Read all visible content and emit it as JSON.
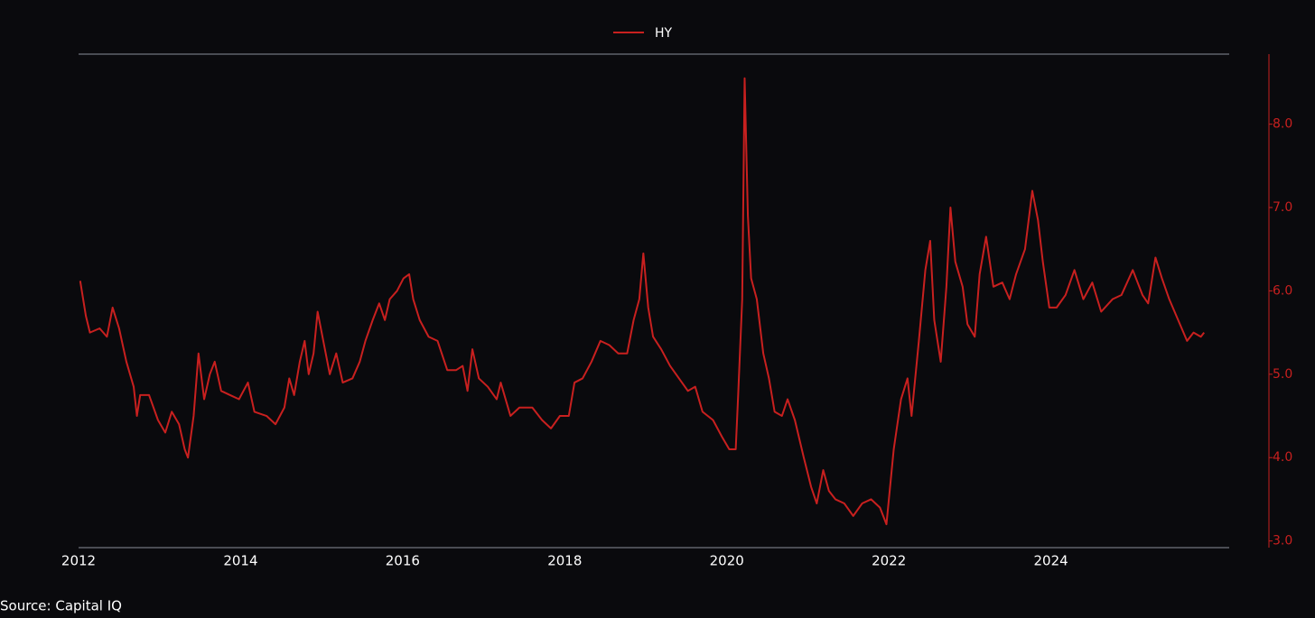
{
  "chart_data": {
    "type": "line",
    "source": "Source: Capital IQ",
    "legend_position": "top",
    "y_axis_side": "right",
    "grid": false,
    "x": [
      2012.02,
      2012.09,
      2012.14,
      2012.26,
      2012.35,
      2012.42,
      2012.5,
      2012.59,
      2012.68,
      2012.72,
      2012.76,
      2012.87,
      2012.98,
      2013.07,
      2013.15,
      2013.24,
      2013.31,
      2013.35,
      2013.42,
      2013.48,
      2013.55,
      2013.62,
      2013.68,
      2013.76,
      2013.87,
      2013.98,
      2014.09,
      2014.17,
      2014.32,
      2014.43,
      2014.54,
      2014.6,
      2014.66,
      2014.73,
      2014.79,
      2014.84,
      2014.9,
      2014.95,
      2015.02,
      2015.1,
      2015.18,
      2015.26,
      2015.38,
      2015.47,
      2015.54,
      2015.63,
      2015.71,
      2015.78,
      2015.84,
      2015.93,
      2016.01,
      2016.08,
      2016.13,
      2016.21,
      2016.32,
      2016.43,
      2016.55,
      2016.66,
      2016.74,
      2016.8,
      2016.86,
      2016.94,
      2017.05,
      2017.16,
      2017.21,
      2017.33,
      2017.44,
      2017.6,
      2017.72,
      2017.83,
      2017.94,
      2018.05,
      2018.12,
      2018.22,
      2018.33,
      2018.44,
      2018.55,
      2018.66,
      2018.77,
      2018.85,
      2018.92,
      2018.97,
      2019.03,
      2019.09,
      2019.19,
      2019.3,
      2019.41,
      2019.52,
      2019.61,
      2019.7,
      2019.83,
      2019.94,
      2020.03,
      2020.11,
      2020.14,
      2020.19,
      2020.22,
      2020.26,
      2020.3,
      2020.37,
      2020.45,
      2020.52,
      2020.59,
      2020.68,
      2020.75,
      2020.84,
      2020.95,
      2021.04,
      2021.11,
      2021.19,
      2021.26,
      2021.34,
      2021.45,
      2021.56,
      2021.67,
      2021.78,
      2021.89,
      2021.97,
      2022.06,
      2022.15,
      2022.23,
      2022.28,
      2022.37,
      2022.45,
      2022.51,
      2022.56,
      2022.64,
      2022.71,
      2022.76,
      2022.82,
      2022.91,
      2022.97,
      2023.06,
      2023.12,
      2023.2,
      2023.29,
      2023.4,
      2023.49,
      2023.57,
      2023.68,
      2023.77,
      2023.84,
      2023.9,
      2023.98,
      2024.07,
      2024.18,
      2024.29,
      2024.4,
      2024.51,
      2024.62,
      2024.76,
      2024.87,
      2025.01,
      2025.13,
      2025.2,
      2025.29,
      2025.37,
      2025.46,
      2025.57,
      2025.68,
      2025.76,
      2025.85,
      2025.89
    ],
    "series": [
      {
        "name": "HY",
        "color": "#c8201f",
        "values": [
          6.12,
          5.7,
          5.5,
          5.55,
          5.45,
          5.8,
          5.55,
          5.15,
          4.85,
          4.5,
          4.75,
          4.75,
          4.45,
          4.3,
          4.55,
          4.4,
          4.1,
          4.0,
          4.5,
          5.25,
          4.7,
          5.0,
          5.15,
          4.8,
          4.75,
          4.7,
          4.9,
          4.55,
          4.5,
          4.4,
          4.6,
          4.95,
          4.75,
          5.15,
          5.4,
          5.0,
          5.25,
          5.75,
          5.4,
          5.0,
          5.25,
          4.9,
          4.95,
          5.15,
          5.4,
          5.65,
          5.85,
          5.65,
          5.9,
          6.0,
          6.15,
          6.2,
          5.9,
          5.65,
          5.45,
          5.4,
          5.05,
          5.05,
          5.1,
          4.8,
          5.3,
          4.95,
          4.85,
          4.7,
          4.9,
          4.5,
          4.6,
          4.6,
          4.45,
          4.35,
          4.5,
          4.5,
          4.9,
          4.95,
          5.15,
          5.4,
          5.35,
          5.25,
          5.25,
          5.65,
          5.9,
          6.45,
          5.8,
          5.45,
          5.3,
          5.1,
          4.95,
          4.8,
          4.85,
          4.55,
          4.45,
          4.25,
          4.1,
          4.1,
          4.75,
          5.9,
          8.55,
          6.9,
          6.15,
          5.9,
          5.25,
          4.95,
          4.55,
          4.5,
          4.7,
          4.45,
          4.0,
          3.65,
          3.45,
          3.85,
          3.6,
          3.5,
          3.45,
          3.3,
          3.45,
          3.5,
          3.4,
          3.2,
          4.1,
          4.7,
          4.95,
          4.5,
          5.4,
          6.25,
          6.6,
          5.65,
          5.15,
          6.05,
          7.0,
          6.35,
          6.05,
          5.6,
          5.45,
          6.2,
          6.65,
          6.05,
          6.1,
          5.9,
          6.2,
          6.5,
          7.2,
          6.85,
          6.35,
          5.8,
          5.8,
          5.95,
          6.25,
          5.9,
          6.1,
          5.75,
          5.9,
          5.95,
          6.25,
          5.95,
          5.85,
          6.4,
          6.15,
          5.9,
          5.65,
          5.4,
          5.5,
          5.45,
          5.5
        ]
      }
    ],
    "xlim": [
      2012,
      2026.2
    ],
    "xticks": [
      2012,
      2014,
      2016,
      2018,
      2020,
      2022,
      2024
    ],
    "ylim": [
      2.92,
      8.84
    ],
    "yticks": [
      {
        "value": 3,
        "label": "3.0"
      },
      {
        "value": 4,
        "label": "4.0"
      },
      {
        "value": 5,
        "label": "5.0"
      },
      {
        "value": 6,
        "label": "6.0"
      },
      {
        "value": 7,
        "label": "7.0"
      },
      {
        "value": 8,
        "label": "8.0"
      }
    ]
  }
}
